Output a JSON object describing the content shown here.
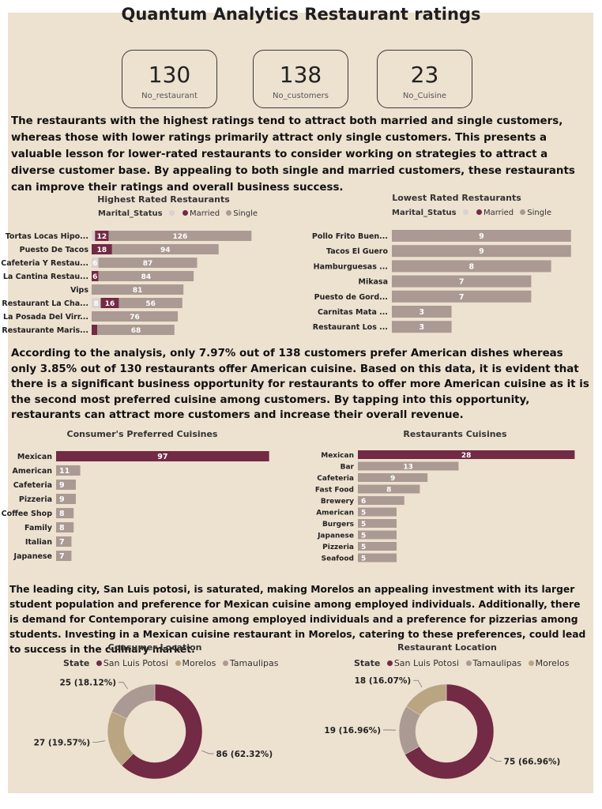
{
  "title": "Quantum Analytics Restaurant ratings",
  "kpis": [
    {
      "value": "130",
      "label": "No_restaurant"
    },
    {
      "value": "138",
      "label": "No_customers"
    },
    {
      "value": "23",
      "label": "No_Cuisine"
    }
  ],
  "paragraphs": {
    "p1": "The restaurants with the highest ratings tend to attract both married and single customers, whereas those with lower ratings primarily attract only single customers. This presents a valuable lesson for lower-rated restaurants to consider working on strategies to attract a diverse customer base. By appealing to both single and married customers, these restaurants can improve their ratings and overall business success.",
    "p2": "According to the analysis, only 7.97% out of 138 customers prefer American dishes whereas only 3.85% out of 130 restaurants offer American cuisine. Based on this data, it is evident that there is a significant business opportunity for restaurants to offer more American cuisine as it is the second most preferred cuisine among customers. By tapping into this opportunity, restaurants can attract more customers and increase their overall revenue.",
    "p3": "The leading city, San Luis potosi, is saturated, making Morelos an appealing investment with its larger student population and preference for Mexican cuisine among employed individuals. Additionally, there is demand for Contemporary cuisine among employed individuals and a preference for pizzerias among students. Investing in a Mexican cuisine restaurant in Morelos, catering to these preferences, could lead to success in the culinary market."
  },
  "colors": {
    "married": "#722a45",
    "single": "#ab9a93",
    "blank": "#d9d2d0",
    "tan": "#b9a582",
    "bg": "#ede1d0"
  },
  "chart_data": [
    {
      "id": "highest",
      "type": "bar",
      "orientation": "horizontal",
      "stacked": true,
      "title": "Highest Rated Restaurants",
      "legend_title": "Marital_Status",
      "legend": [
        "",
        "Married",
        "Single"
      ],
      "categories": [
        "Tortas Locas Hipo...",
        "Puesto De Tacos",
        "Cafeteria Y Restau...",
        "La Cantina Restau...",
        "Vips",
        "Restaurant La Cha...",
        "La Posada Del Virr...",
        "Restaurante Maris..."
      ],
      "series": [
        {
          "name": "",
          "values": [
            3,
            0,
            6,
            0,
            0,
            8,
            0,
            0
          ]
        },
        {
          "name": "Married",
          "values": [
            12,
            18,
            0,
            6,
            0,
            16,
            0,
            5
          ]
        },
        {
          "name": "Single",
          "values": [
            126,
            94,
            87,
            84,
            81,
            56,
            76,
            68
          ]
        }
      ],
      "data_labels": [
        [
          "",
          "12",
          "126"
        ],
        [
          "",
          "18",
          "94"
        ],
        [
          "6",
          "",
          "87"
        ],
        [
          "",
          "6",
          "84"
        ],
        [
          "",
          "",
          "81"
        ],
        [
          "8",
          "16",
          "56"
        ],
        [
          "",
          "",
          "76"
        ],
        [
          "",
          "",
          "68"
        ]
      ]
    },
    {
      "id": "lowest",
      "type": "bar",
      "orientation": "horizontal",
      "title": "Lowest Rated Restaurants",
      "legend_title": "Marital_Status",
      "legend": [
        "",
        "Married",
        "Single"
      ],
      "categories": [
        "Pollo Frito Buen...",
        "Tacos El Guero",
        "Hamburguesas ...",
        "Mikasa",
        "Puesto de Gord...",
        "Carnitas Mata ...",
        "Restaurant Los ..."
      ],
      "series": [
        {
          "name": "Single",
          "values": [
            9,
            9,
            8,
            7,
            7,
            3,
            3
          ]
        }
      ]
    },
    {
      "id": "consumer_cuisines",
      "type": "bar",
      "orientation": "horizontal",
      "title": "Consumer's Preferred Cuisines",
      "categories": [
        "Mexican",
        "American",
        "Cafeteria",
        "Pizzeria",
        "Coffee Shop",
        "Family",
        "Italian",
        "Japanese"
      ],
      "values": [
        97,
        11,
        9,
        9,
        8,
        8,
        7,
        7
      ]
    },
    {
      "id": "restaurant_cuisines",
      "type": "bar",
      "orientation": "horizontal",
      "title": "Restaurants Cuisines",
      "categories": [
        "Mexican",
        "Bar",
        "Cafeteria",
        "Fast Food",
        "Brewery",
        "American",
        "Burgers",
        "Japanese",
        "Pizzeria",
        "Seafood"
      ],
      "values": [
        28,
        13,
        9,
        8,
        6,
        5,
        5,
        5,
        5,
        5
      ]
    },
    {
      "id": "consumer_location",
      "type": "pie",
      "donut": true,
      "title": "Consumer Location",
      "legend_title": "State",
      "legend": [
        "San Luis Potosi",
        "Morelos",
        "Tamaulipas"
      ],
      "slices": [
        {
          "name": "San Luis Potosi",
          "value": 86,
          "label": "86 (62.32%)"
        },
        {
          "name": "Morelos",
          "value": 27,
          "label": "27 (19.57%)"
        },
        {
          "name": "Tamaulipas",
          "value": 25,
          "label": "25 (18.12%)"
        }
      ]
    },
    {
      "id": "restaurant_location",
      "type": "pie",
      "donut": true,
      "title": "Restaurant Location",
      "legend_title": "State",
      "legend": [
        "San Luis Potosi",
        "Tamaulipas",
        "Morelos"
      ],
      "slices": [
        {
          "name": "San Luis Potosi",
          "value": 75,
          "label": "75 (66.96%)"
        },
        {
          "name": "Tamaulipas",
          "value": 19,
          "label": "19 (16.96%)"
        },
        {
          "name": "Morelos",
          "value": 18,
          "label": "18 (16.07%)"
        }
      ]
    }
  ]
}
